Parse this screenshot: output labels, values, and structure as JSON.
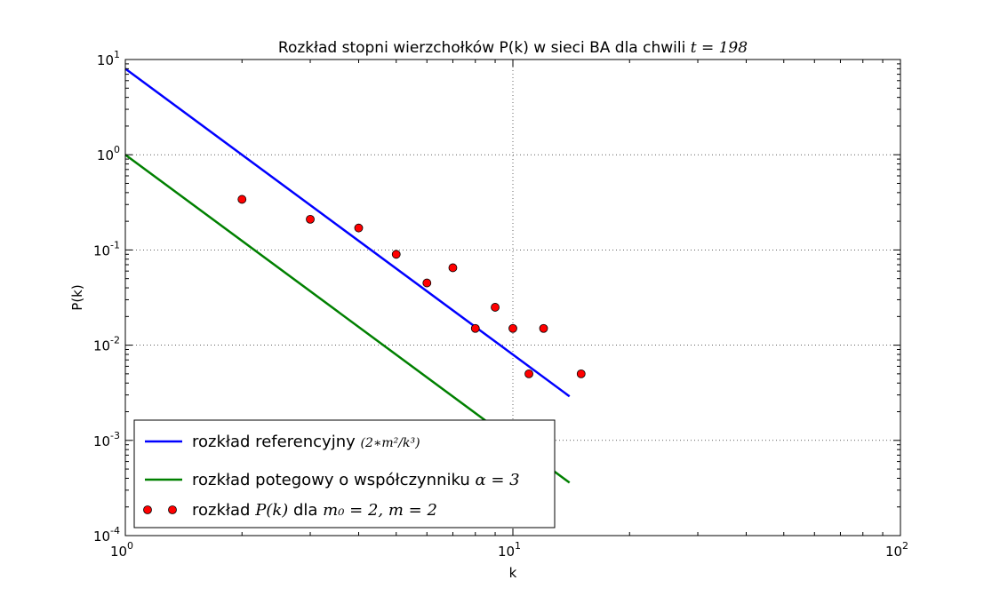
{
  "chart_data": {
    "type": "line",
    "title": "Rozkład stopni wierzchołków P(k) w sieci BA dla chwili",
    "title_math": "t = 198",
    "xlabel": "k",
    "ylabel": "P(k)",
    "xscale": "log",
    "yscale": "log",
    "xlim": [
      1,
      100
    ],
    "ylim": [
      0.0001,
      10
    ],
    "grid": true,
    "legend_position": "lower-left",
    "x_ticks": [
      {
        "base": "10",
        "exp": "0",
        "value": 1
      },
      {
        "base": "10",
        "exp": "1",
        "value": 10
      },
      {
        "base": "10",
        "exp": "2",
        "value": 100
      }
    ],
    "y_ticks": [
      {
        "base": "10",
        "exp": "1",
        "value": 10
      },
      {
        "base": "10",
        "exp": "0",
        "value": 1
      },
      {
        "base": "10",
        "exp": "-1",
        "value": 0.1
      },
      {
        "base": "10",
        "exp": "-2",
        "value": 0.01
      },
      {
        "base": "10",
        "exp": "-3",
        "value": 0.001
      },
      {
        "base": "10",
        "exp": "-4",
        "value": 0.0001
      }
    ],
    "series": [
      {
        "name": "rozkład referencyjny",
        "name_math": "(2∗m²/k³)",
        "kind": "line",
        "color": "#0000ff",
        "x": [
          1,
          14
        ],
        "y": [
          8,
          0.0029
        ]
      },
      {
        "name": "rozkład potegowy o współczynniku",
        "name_math": "α = 3",
        "kind": "line",
        "color": "#008000",
        "x": [
          1,
          14
        ],
        "y": [
          1,
          0.00036
        ]
      },
      {
        "name": "rozkład",
        "name_math": "P(k)",
        "name_mid": "dla",
        "name_math2": "m₀ = 2, m = 2",
        "kind": "scatter",
        "color": "#ff0000",
        "edge_color": "#000000",
        "x": [
          2,
          3,
          4,
          5,
          6,
          7,
          8,
          9,
          10,
          11,
          12,
          15
        ],
        "y": [
          0.34,
          0.21,
          0.17,
          0.09,
          0.045,
          0.065,
          0.015,
          0.025,
          0.015,
          0.005,
          0.015,
          0.005
        ]
      }
    ]
  }
}
